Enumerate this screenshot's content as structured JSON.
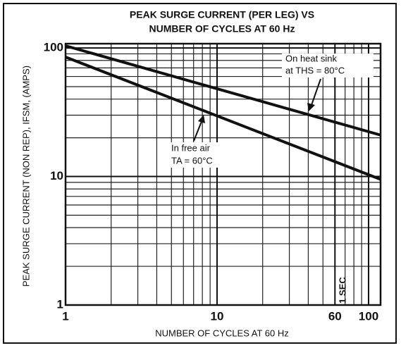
{
  "chart_data": {
    "type": "line",
    "title": [
      "PEAK SURGE CURRENT (PER LEG) VS",
      "NUMBER OF CYCLES AT 60 Hz"
    ],
    "xlabel": "NUMBER OF CYCLES AT 60 Hz",
    "ylabel": "PEAK SURGE CURRENT (NON REP), IFSM, (AMPS)",
    "log_x": true,
    "log_y": true,
    "grid": true,
    "xlim": [
      1,
      120
    ],
    "ylim": [
      1,
      108
    ],
    "xticks": [
      1,
      10,
      60,
      100
    ],
    "yticks": [
      1,
      10,
      100
    ],
    "series": [
      {
        "name": "On heat sink at THS = 80°C",
        "color": "#111111",
        "x": [
          1,
          120
        ],
        "values": [
          104,
          21
        ]
      },
      {
        "name": "In free air TA = 60°C",
        "color": "#111111",
        "x": [
          1,
          120
        ],
        "values": [
          85,
          9.5
        ]
      }
    ],
    "annotations": [
      "On heat sink",
      "at THS = 80°C",
      "In free air",
      "TA = 60°C",
      "1 SEC"
    ]
  }
}
